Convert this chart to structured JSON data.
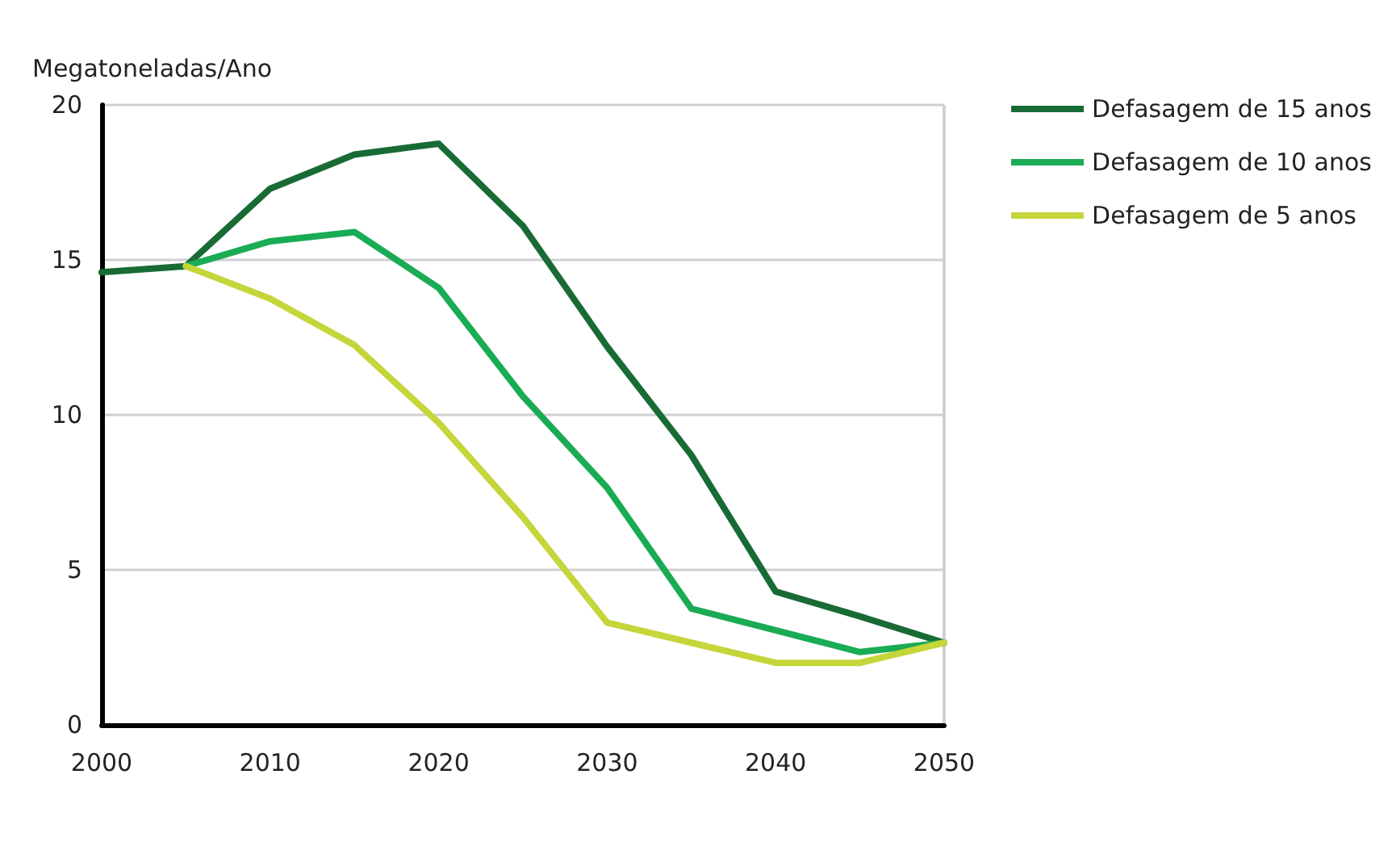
{
  "chart_data": {
    "type": "line",
    "ylabel": "Megatoneladas/Ano",
    "x": [
      2000,
      2005,
      2010,
      2015,
      2020,
      2025,
      2030,
      2035,
      2040,
      2045,
      2050
    ],
    "series": [
      {
        "name": "Defasagem de 15 anos",
        "color": "#186b35",
        "values": [
          14.6,
          14.8,
          17.3,
          18.4,
          18.75,
          16.1,
          12.2,
          8.7,
          4.3,
          3.5,
          2.65
        ]
      },
      {
        "name": "Defasagem de 10 anos",
        "color": "#1aab55",
        "values": [
          null,
          14.8,
          15.6,
          15.9,
          14.1,
          10.6,
          7.65,
          3.75,
          3.05,
          2.35,
          2.65
        ]
      },
      {
        "name": "Defasagem de 5 anos",
        "color": "#c4d63a",
        "values": [
          null,
          14.8,
          13.75,
          12.25,
          9.75,
          6.7,
          3.3,
          2.65,
          2.0,
          2.0,
          2.65
        ]
      }
    ],
    "xlim": [
      2000,
      2050
    ],
    "xticks": [
      2000,
      2010,
      2020,
      2030,
      2040,
      2050
    ],
    "ylim": [
      0,
      20
    ],
    "yticks": [
      0,
      5,
      10,
      15,
      20
    ],
    "grid": "y",
    "legend": "top right",
    "marker": "none",
    "line_style": "solid"
  }
}
